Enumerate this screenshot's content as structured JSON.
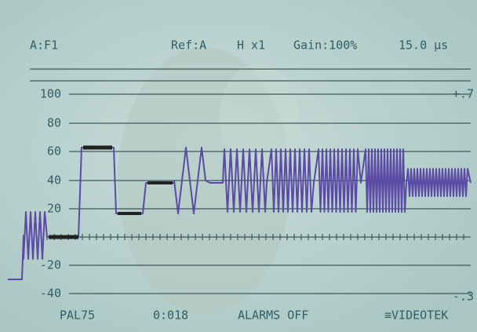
{
  "header": {
    "input": "A:F1",
    "reference": "Ref:A",
    "horizontal": "H x1",
    "gain": "Gain:100%",
    "sweep": "15.0 µs"
  },
  "graticule": {
    "left_labels": [
      "100",
      "80",
      "60",
      "40",
      "20",
      "-20",
      "-40"
    ],
    "right_labels": [
      "+.7",
      "-.3"
    ]
  },
  "footer": {
    "format": "PAL75",
    "time": "0:018",
    "alarms": "ALARMS OFF",
    "brand": "≡VIDEOTEK"
  }
}
